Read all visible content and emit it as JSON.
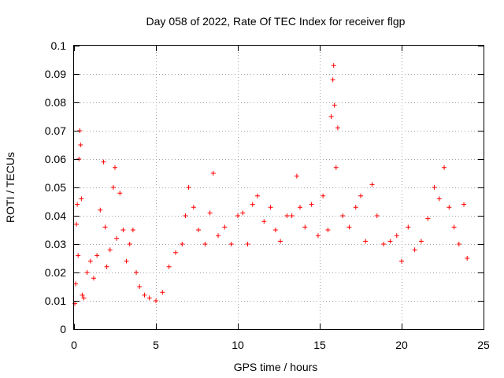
{
  "chart_data": {
    "type": "scatter",
    "title": "Day 058 of 2022, Rate Of TEC Index for receiver flgp",
    "xlabel": "GPS time / hours",
    "ylabel": "ROTI / TECUs",
    "xlim": [
      0,
      25
    ],
    "ylim": [
      0,
      0.1
    ],
    "grid": true,
    "x_ticks": [
      0,
      5,
      10,
      15,
      20,
      25
    ],
    "y_ticks": [
      0,
      0.01,
      0.02,
      0.03,
      0.04,
      0.05,
      0.06,
      0.07,
      0.08,
      0.09,
      0.1
    ],
    "x_tick_labels": [
      "0",
      "5",
      "10",
      "15",
      "20",
      "25"
    ],
    "y_tick_labels": [
      "0",
      "0.01",
      "0.02",
      "0.03",
      "0.04",
      "0.05",
      "0.06",
      "0.07",
      "0.08",
      "0.09",
      "0.1"
    ],
    "marker": "+",
    "series": [
      {
        "name": "ROTI",
        "color": "#ff0000",
        "x": [
          0.05,
          0.1,
          0.15,
          0.2,
          0.25,
          0.3,
          0.35,
          0.4,
          0.45,
          0.5,
          0.6,
          0.8,
          1.0,
          1.2,
          1.4,
          1.6,
          1.8,
          1.9,
          2.0,
          2.2,
          2.4,
          2.5,
          2.6,
          2.8,
          3.0,
          3.2,
          3.4,
          3.6,
          3.8,
          4.0,
          4.3,
          4.6,
          5.0,
          5.4,
          5.8,
          6.2,
          6.6,
          6.8,
          7.0,
          7.3,
          7.6,
          8.0,
          8.3,
          8.5,
          8.8,
          9.2,
          9.6,
          10.0,
          10.3,
          10.6,
          10.9,
          11.2,
          11.6,
          12.0,
          12.3,
          12.6,
          13.0,
          13.3,
          13.6,
          13.8,
          14.1,
          14.5,
          14.9,
          15.2,
          15.5,
          15.7,
          15.8,
          15.85,
          15.9,
          16.0,
          16.1,
          16.4,
          16.8,
          17.2,
          17.5,
          17.8,
          18.2,
          18.5,
          18.9,
          19.3,
          19.7,
          20.0,
          20.4,
          20.8,
          21.2,
          21.6,
          22.0,
          22.3,
          22.6,
          22.9,
          23.2,
          23.5,
          23.8,
          24.0
        ],
        "y": [
          0.009,
          0.016,
          0.037,
          0.044,
          0.026,
          0.06,
          0.07,
          0.065,
          0.046,
          0.012,
          0.011,
          0.02,
          0.024,
          0.018,
          0.026,
          0.042,
          0.059,
          0.036,
          0.022,
          0.028,
          0.05,
          0.057,
          0.032,
          0.048,
          0.035,
          0.024,
          0.03,
          0.035,
          0.02,
          0.015,
          0.012,
          0.011,
          0.01,
          0.013,
          0.022,
          0.027,
          0.03,
          0.04,
          0.05,
          0.043,
          0.035,
          0.03,
          0.041,
          0.055,
          0.033,
          0.036,
          0.03,
          0.04,
          0.041,
          0.03,
          0.044,
          0.047,
          0.038,
          0.043,
          0.035,
          0.031,
          0.04,
          0.04,
          0.054,
          0.043,
          0.036,
          0.044,
          0.033,
          0.047,
          0.035,
          0.075,
          0.088,
          0.093,
          0.079,
          0.057,
          0.071,
          0.04,
          0.036,
          0.043,
          0.047,
          0.031,
          0.051,
          0.04,
          0.03,
          0.031,
          0.033,
          0.024,
          0.036,
          0.028,
          0.031,
          0.039,
          0.05,
          0.046,
          0.057,
          0.043,
          0.036,
          0.03,
          0.044,
          0.025
        ]
      }
    ]
  }
}
